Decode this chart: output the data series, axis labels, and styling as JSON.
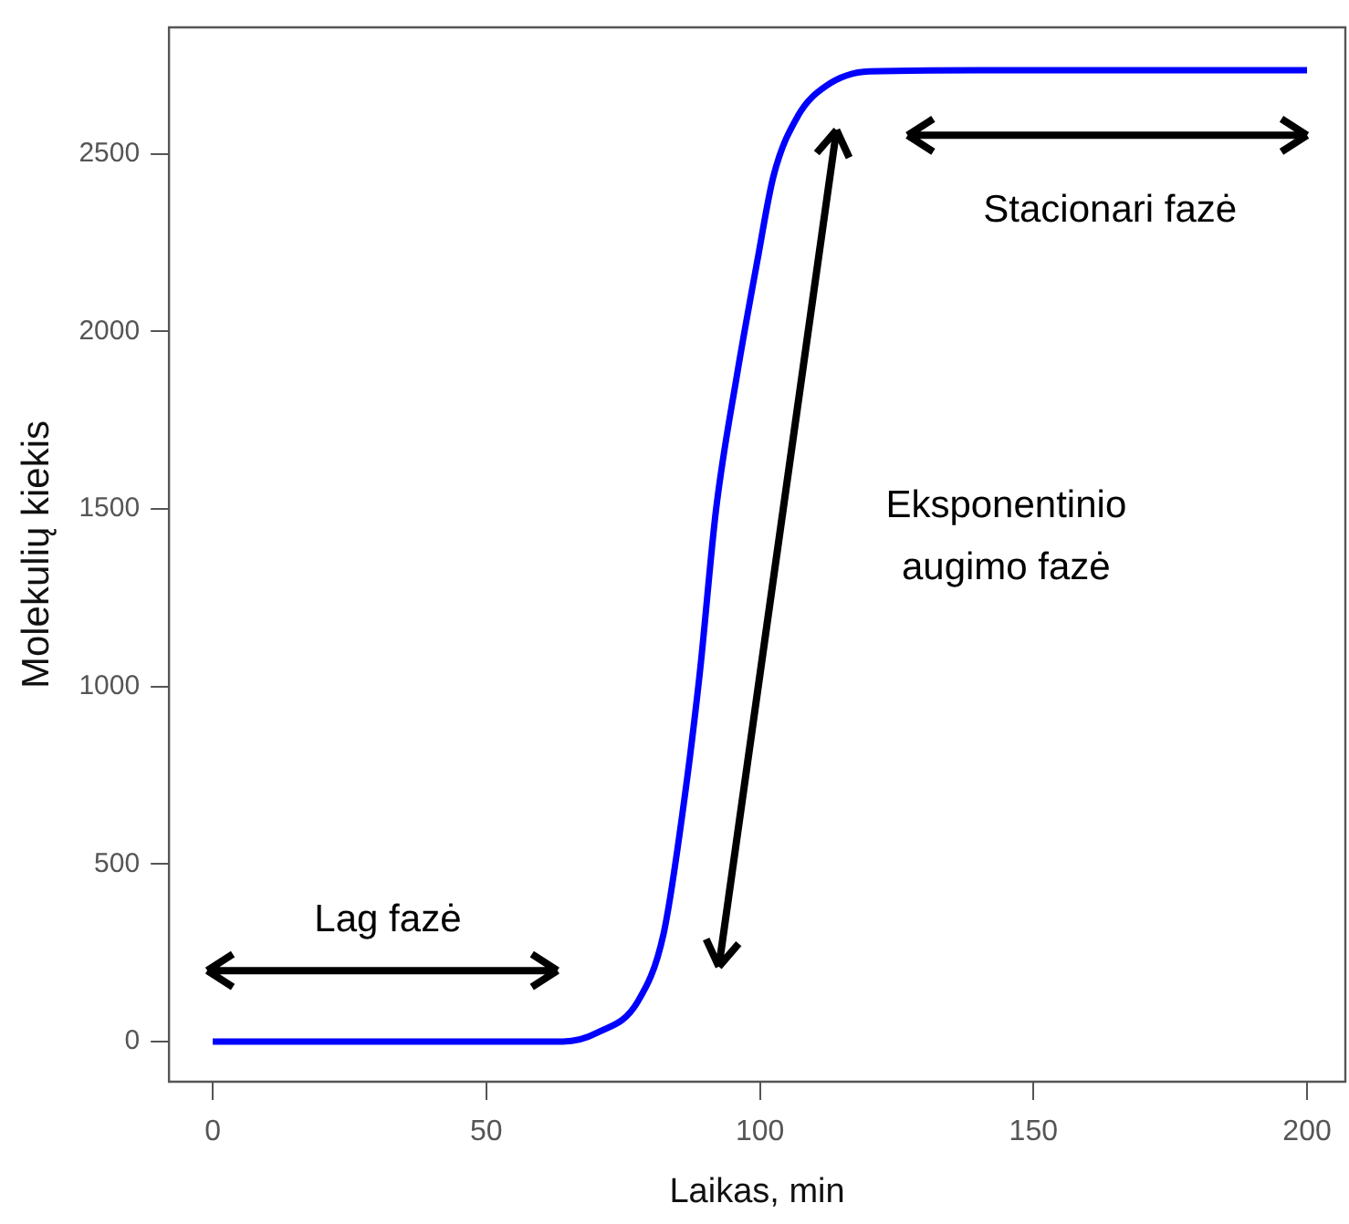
{
  "chart_data": {
    "type": "line",
    "xlabel": "Laikas, min",
    "ylabel": "Molekulių kiekis",
    "x": [
      0,
      20,
      40,
      60,
      64,
      70.4,
      77.7,
      82.4,
      86,
      89,
      92,
      95.8,
      99.5,
      102.5,
      107,
      112,
      120,
      140,
      160,
      180,
      200
    ],
    "series": [
      {
        "color": "#0000ff",
        "values": [
          0,
          0,
          0,
          0,
          0,
          26,
          113,
          304,
          660,
          1036,
          1500,
          1876,
          2196,
          2438,
          2608,
          2690,
          2732,
          2735,
          2735,
          2735,
          2735
        ]
      }
    ],
    "xlim": [
      -8,
      207
    ],
    "xticks": [
      0,
      50,
      100,
      150,
      200
    ],
    "ylim": [
      -113,
      2856
    ],
    "yticks": [
      0,
      500,
      1000,
      1500,
      2000,
      2500
    ],
    "grid": false,
    "legend": false,
    "marker": "none",
    "line_style": "solid",
    "annotations": [
      "Lag fazė",
      "Eksponentinio\naugimo fazė",
      "Stacionari fazė"
    ]
  }
}
